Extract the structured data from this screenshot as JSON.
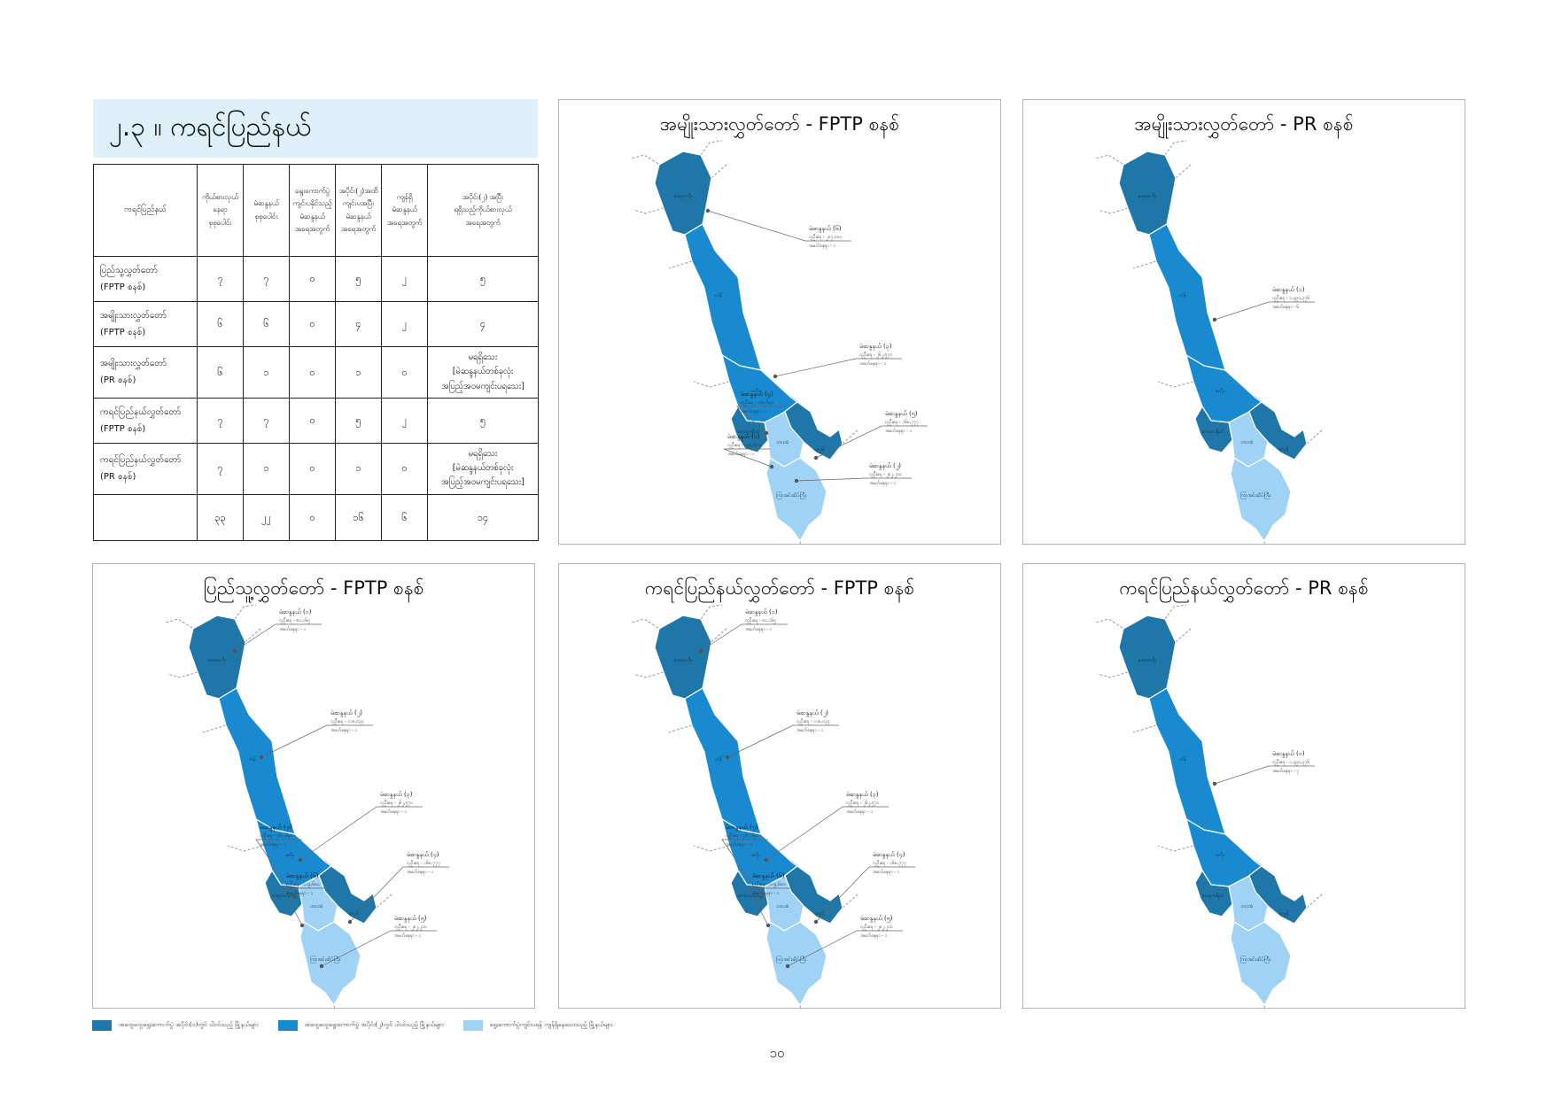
{
  "page": {
    "title": "၂.၃ ။ ကရင်ပြည်နယ်",
    "page_number": "၁၀"
  },
  "colors": {
    "dark": "#1f76a8",
    "mid": "#1a8ad0",
    "light": "#9fd2f5",
    "title_bg": "#dff0fb"
  },
  "table": {
    "headers": [
      [
        "ကရင်ပြည်နယ်"
      ],
      [
        "ကိုယ်စားလှယ်",
        "နေရာ",
        "စုစုပေါင်း"
      ],
      [
        "မဲဆန္ဒနယ်",
        "စုစုပေါင်း"
      ],
      [
        "ရွေးကောက်ပွဲ",
        "ကျင်းပနိုင်သည့်",
        "မဲဆန္ဒနယ်",
        "အရေအတွက်"
      ],
      [
        "အပိုင်း(၂)အထိ",
        "ကျင်းပအပြီး",
        "မဲဆန္ဒနယ်",
        "အရေအတွက်"
      ],
      [
        "ကျန်ရှိ",
        "မဲဆန္ဒနယ်",
        "အရေအတွက်"
      ],
      [
        "အပိုင်း(၂) အပြီး",
        "ရရှိသည့်ကိုယ်စားလှယ်",
        "အရေအတွက်"
      ]
    ],
    "rows": [
      {
        "label": [
          "ပြည်သူ့လွှတ်တော်",
          "(FPTP စနစ်)"
        ],
        "cells": [
          "၇",
          "၇",
          "၀",
          "၅",
          "၂"
        ],
        "result": [
          "၅"
        ]
      },
      {
        "label": [
          "အမျိုးသားလွှတ်တော်",
          "(FPTP စနစ်)"
        ],
        "cells": [
          "၆",
          "၆",
          "၀",
          "၄",
          "၂"
        ],
        "result": [
          "၄"
        ]
      },
      {
        "label": [
          "အမျိုးသားလွှတ်တော်",
          "(PR စနစ်)"
        ],
        "cells": [
          "၆",
          "၁",
          "၀",
          "၁",
          "၀"
        ],
        "result": [
          "မရရှိသေး",
          "[မဲဆန္ဒနယ်တစ်ခုလုံး",
          "အပြည့်အဝမကျင်းပရသေး]"
        ]
      },
      {
        "label": [
          "ကရင်ပြည်နယ်လွှတ်တော်",
          "(FPTP စနစ်)"
        ],
        "cells": [
          "၇",
          "၇",
          "၀",
          "၅",
          "၂"
        ],
        "result": [
          "၅"
        ]
      },
      {
        "label": [
          "ကရင်ပြည်နယ်လွှတ်တော်",
          "(PR စနစ်)"
        ],
        "cells": [
          "၇",
          "၁",
          "၀",
          "၁",
          "၀"
        ],
        "result": [
          "မရရှိသေး",
          "[မဲဆန္ဒနယ်တစ်ခုလုံး",
          "အပြည့်အဝမကျင်းပရသေး]"
        ]
      },
      {
        "label": [
          ""
        ],
        "cells": [
          "၃၃",
          "၂၂",
          "၀",
          "၁၆",
          "၆"
        ],
        "result": [
          "၁၄"
        ]
      }
    ]
  },
  "maps": [
    {
      "title": "အမျိုးသားလွှတ်တော် - FPTP စနစ်",
      "districts": [
        "ထော့ဝကိုး",
        "ကဲန်",
        "ဖလိုး",
        "ကော့ကရိတ်",
        "ဘားအံ",
        "ဖာပွန်",
        "ကြာအင်းဆိပ်ကြီး"
      ],
      "callouts": [
        {
          "title": "မဲဆန္ဒနယ် (၆)",
          "line1": "လူဦးရေ - ၂၀၇,၀၀၀",
          "line2": "အမတ်နေရာ - ၁"
        },
        {
          "title": "မဲဆန္ဒနယ် (၃)",
          "line1": "လူဦးရေ - ၂၆၂,၅၇၀",
          "line2": "အမတ်နေရာ - ၁"
        },
        {
          "title": "မဲဆန္ဒနယ် (၄)",
          "line1": "လူဦးရေ - ၁၈၈,၆၄၀",
          "line2": "အမတ်နေရာ - ၁"
        },
        {
          "title": "မဲဆန္ဒနယ် (၅)",
          "line1": "လူဦးရေ - ၁၆၈,၇၇၇",
          "line2": "အမတ်နေရာ - ၁"
        },
        {
          "title": "မဲဆန္ဒနယ် (၁)",
          "line1": "လူဦးရေ - ၁၃၉,၆၈၀",
          "line2": "အမတ်နေရာ - ၁"
        },
        {
          "title": "မဲဆန္ဒနယ် (၂)",
          "line1": "လူဦးရေ - ၂၈၂,၂၀၀",
          "line2": "အမတ်နေရာ - ၁"
        }
      ]
    },
    {
      "title": "အမျိုးသားလွှတ်တော် - PR စနစ်",
      "districts": [
        "ထော့ဝကိုး",
        "ကဲန်",
        "ဖလိုး",
        "ကော့ကရိတ်",
        "ဘားအံ",
        "ဖာပွန်",
        "ကြာအင်းဆိပ်ကြီး"
      ],
      "callouts": [
        {
          "title": "မဲဆန္ဒနယ် (၁)",
          "line1": "လူဦးရေ - ၁,၄၉၀,၃၇၆",
          "line2": "အမတ်နေရာ - ၆"
        }
      ]
    },
    {
      "title": "ပြည်သူ့လွှတ်တော် - FPTP စနစ်",
      "districts": [
        "ထော့ဝကိုး",
        "ကဲန်",
        "ဖလိုး",
        "ကော့ကရိတ်",
        "ဘားအံ",
        "ဖာပွန်",
        "ကြာအင်းဆိပ်ကြီး"
      ],
      "callouts": [
        {
          "title": "မဲဆန္ဒနယ် (၁)",
          "line1": "လူဦးရေ - ၈၀,၁၆၅",
          "line2": "အမတ်နေရာ - ၁"
        },
        {
          "title": "မဲဆန္ဒနယ် (၂)",
          "line1": "လူဦးရေ - ၁၁၈,၀၃၄",
          "line2": "အမတ်နေရာ - ၁"
        },
        {
          "title": "မဲဆန္ဒနယ် (၃)",
          "line1": "လူဦးရေ - ၂၆၂,၅၇၀",
          "line2": "အမတ်နေရာ - ၁"
        },
        {
          "title": "မဲဆန္ဒနယ် (၇)",
          "line1": "လူဦးရေ - ၄၆၇,၆၉၀",
          "line2": "အမတ်နေရာ - ၁"
        },
        {
          "title": "မဲဆန္ဒနယ် (၄)",
          "line1": "လူဦးရေ - ၁၆၈,၇၇၇",
          "line2": "အမတ်နေရာ - ၁"
        },
        {
          "title": "မဲဆန္ဒနယ် (၆)",
          "line1": "လူဦးရေ - ၁၁၉,၆၈၀",
          "line2": "အမတ်နေရာ - ၁"
        },
        {
          "title": "မဲဆန္ဒနယ် (၅)",
          "line1": "လူဦးရေ - ၂၈၂,၂၀၀",
          "line2": "အမတ်နေရာ - ၁"
        }
      ]
    },
    {
      "title": "ကရင်ပြည်နယ်လွှတ်တော် - FPTP စနစ်",
      "districts": [
        "ထော့ဝကိုး",
        "ကဲန်",
        "ဖလိုး",
        "ကော့ကရိတ်",
        "ဘားအံ",
        "ဖာပွန်",
        "ကြာအင်းဆိပ်ကြီး"
      ],
      "callouts": [
        {
          "title": "မဲဆန္ဒနယ် (၁)",
          "line1": "လူဦးရေ - ၈၀,၁၆၅",
          "line2": "အမတ်နေရာ - ၁"
        },
        {
          "title": "မဲဆန္ဒနယ် (၂)",
          "line1": "လူဦးရေ - ၁၁၈,၀၃၄",
          "line2": "အမတ်နေရာ - ၁"
        },
        {
          "title": "မဲဆန္ဒနယ် (၃)",
          "line1": "လူဦးရေ - ၂၆၂,၅၇၀",
          "line2": "အမတ်နေရာ - ၁"
        },
        {
          "title": "မဲဆန္ဒနယ် (၇)",
          "line1": "လူဦးရေ - ၄၆၇,၆၉၀",
          "line2": "အမတ်နေရာ - ၁"
        },
        {
          "title": "မဲဆန္ဒနယ် (၄)",
          "line1": "လူဦးရေ - ၁၆၈,၇၇၇",
          "line2": "အမတ်နေရာ - ၁"
        },
        {
          "title": "မဲဆန္ဒနယ် (၆)",
          "line1": "လူဦးရေ - ၁၁၉,၆၈၀",
          "line2": "အမတ်နေရာ - ၁"
        },
        {
          "title": "မဲဆန္ဒနယ် (၅)",
          "line1": "လူဦးရေ - ၂၈၂,၂၀၀",
          "line2": "အမတ်နေရာ - ၁"
        }
      ]
    },
    {
      "title": "ကရင်ပြည်နယ်လွှတ်တော် - PR စနစ်",
      "districts": [
        "ထော့ဝကိုး",
        "ကဲန်",
        "ဖလိုး",
        "ကော့ကရိတ်",
        "ဘားအံ",
        "ဖာပွန်",
        "ကြာအင်းဆိပ်ကြီး"
      ],
      "callouts": [
        {
          "title": "မဲဆန္ဒနယ် (၁)",
          "line1": "လူဦးရေ - ၁,၄၉၀,၃၇၆",
          "line2": "အမတ်နေရာ - ၇"
        }
      ]
    }
  ],
  "legend": [
    {
      "color": "#1f76a8",
      "label": "အထွေထွေရွေးကောက်ပွဲ အပိုင်း(၁)တွင် ပါဝင်သည့် မြို့နယ်များ"
    },
    {
      "color": "#1a8ad0",
      "label": "အထွေထွေရွေးကောက်ပွဲ အပိုင်း(၂)တွင် ပါဝင်သည့် မြို့နယ်များ"
    },
    {
      "color": "#9fd2f5",
      "label": "ရွေးကောက်ပွဲကျင်းပရန် ကျန်ရှိနေသေးသည့် မြို့နယ်များ"
    }
  ]
}
